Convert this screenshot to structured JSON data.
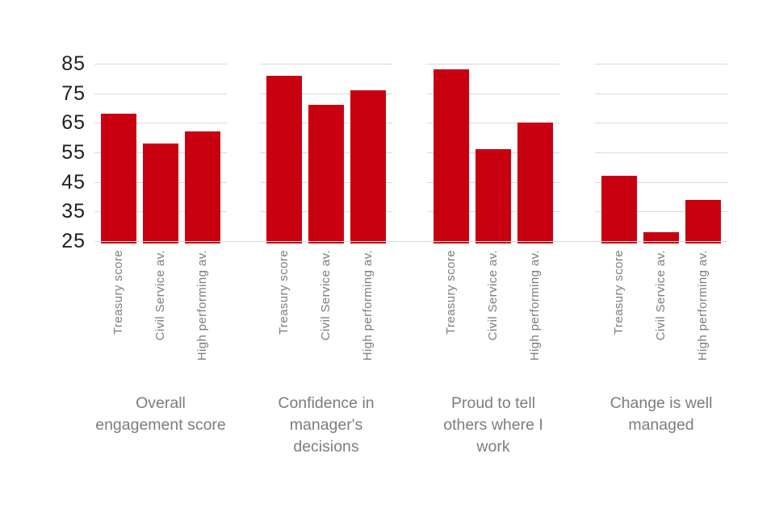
{
  "chart_data": {
    "type": "bar",
    "title": "",
    "bar_categories": [
      "Treasury score",
      "Civil Service av.",
      "High performing av."
    ],
    "groups": [
      {
        "label": "Overall engagement score",
        "label_lines": [
          "Overall",
          "engagement score"
        ],
        "values": [
          68,
          58,
          62
        ]
      },
      {
        "label": "Confidence in manager's decisions",
        "label_lines": [
          "Confidence in",
          "manager's",
          "decisions"
        ],
        "values": [
          81,
          71,
          76
        ]
      },
      {
        "label": "Proud to tell others where I work",
        "label_lines": [
          "Proud to tell",
          "others where I",
          "work"
        ],
        "values": [
          83,
          56,
          65
        ]
      },
      {
        "label": "Change is well managed",
        "label_lines": [
          "Change is well",
          "managed"
        ],
        "values": [
          47,
          28,
          39
        ]
      }
    ],
    "y_ticks": [
      85,
      75,
      65,
      55,
      45,
      35,
      25
    ],
    "ylim": [
      25,
      85
    ],
    "grid": true,
    "legend": "none",
    "colors": {
      "bar": "#c8000f",
      "gridline": "#d9d9d9",
      "tick_label": "#1f1f1f",
      "category_label": "#7d7d7d",
      "group_label": "#7d7d7d",
      "background": "#ffffff"
    }
  }
}
